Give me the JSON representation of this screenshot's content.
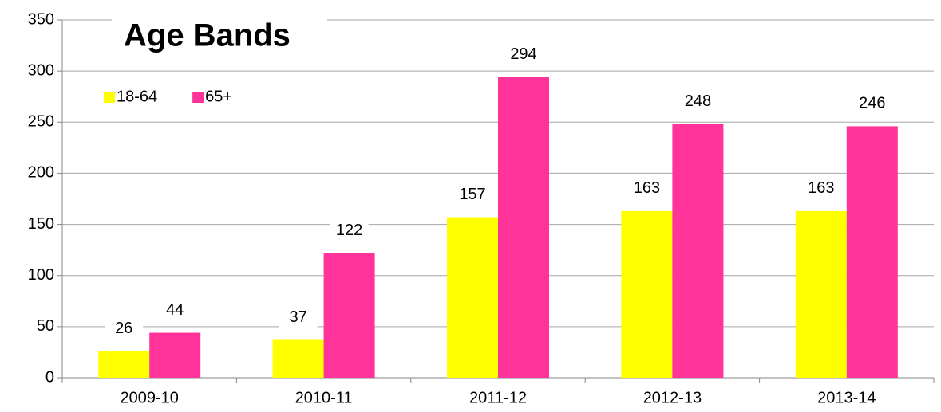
{
  "chart_data": {
    "type": "bar",
    "title": "Age Bands",
    "categories": [
      "2009-10",
      "2010-11",
      "2011-12",
      "2012-13",
      "2013-14"
    ],
    "series": [
      {
        "name": "18-64",
        "color": "#ffff00",
        "values": [
          26,
          37,
          157,
          163,
          163
        ]
      },
      {
        "name": "65+",
        "color": "#ff3399",
        "values": [
          44,
          122,
          294,
          248,
          246
        ]
      }
    ],
    "ylim": [
      0,
      350
    ],
    "yticks": [
      0,
      50,
      100,
      150,
      200,
      250,
      300,
      350
    ],
    "grid": true,
    "legend": "upper left",
    "data_labels": true
  }
}
